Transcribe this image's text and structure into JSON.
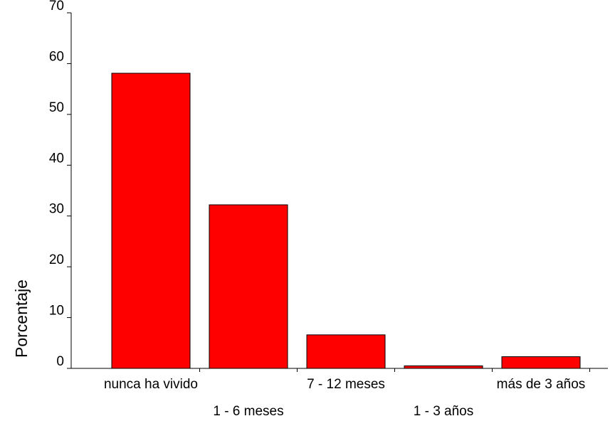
{
  "chart_data": {
    "type": "bar",
    "title": "",
    "xlabel": "",
    "ylabel": "Porcentaje",
    "categories": [
      "nunca ha vivido",
      "1 - 6 meses",
      "7 - 12 meses",
      "1 - 3 años",
      "más de 3 años"
    ],
    "values": [
      58.1,
      32.2,
      6.6,
      0.5,
      2.3
    ],
    "ylim": [
      0,
      70
    ],
    "yticks": [
      "0",
      "10",
      "20",
      "30",
      "40",
      "50",
      "60",
      "70"
    ],
    "grid": false,
    "legend": "none",
    "bar_color": "#ff0000",
    "bar_edge_color": "#000000"
  }
}
